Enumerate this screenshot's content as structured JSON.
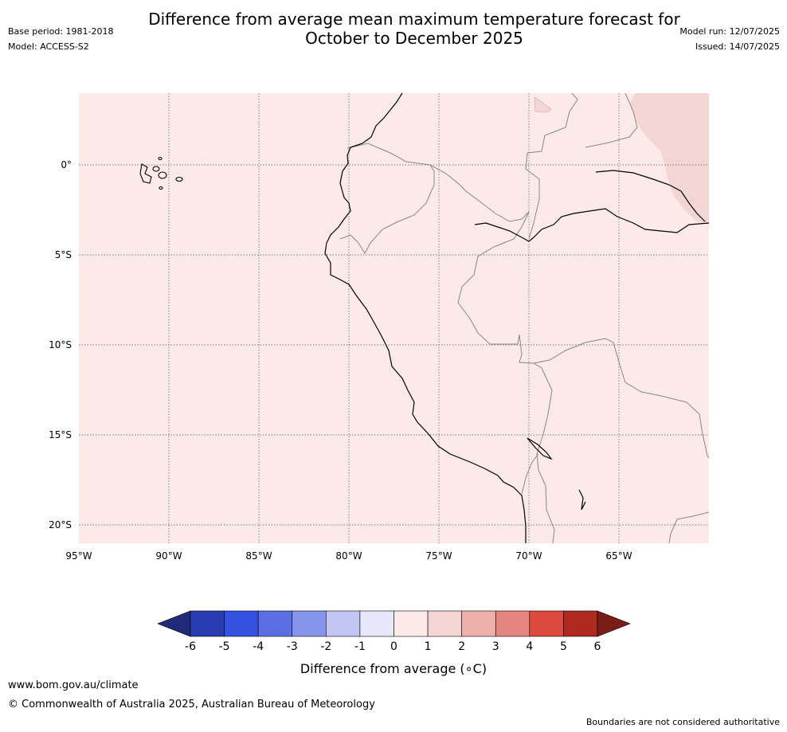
{
  "title_line1": "Difference from average mean maximum temperature forecast for",
  "title_line2": "October to December 2025",
  "base_period": "Base period: 1981-2018",
  "model": "Model: ACCESS-S2",
  "model_run": "Model run: 12/07/2025",
  "issued": "Issued: 14/07/2025",
  "map": {
    "lat_ticks": [
      "0°",
      "5°S",
      "10°S",
      "15°S",
      "20°S"
    ],
    "lon_ticks": [
      "95°W",
      "90°W",
      "85°W",
      "80°W",
      "75°W",
      "70°W",
      "65°W"
    ],
    "fill_category": "0 to 1",
    "fill_color": "#fbeae8",
    "warm_patch_category": "1 to 2",
    "warm_patch_color": "#f3d6d3"
  },
  "colorbar": {
    "labels": [
      "-6",
      "-5",
      "-4",
      "-3",
      "-2",
      "-1",
      "0",
      "1",
      "2",
      "3",
      "4",
      "5",
      "6"
    ],
    "colors": [
      "#1f2a78",
      "#2a3db0",
      "#3451e0",
      "#5a6fe3",
      "#8594e8",
      "#c1c6f2",
      "#e6e8f9",
      "#fbeae8",
      "#f3d6d3",
      "#eeb0ab",
      "#e5867e",
      "#db4a3d",
      "#ae2a20",
      "#7a1d16"
    ],
    "title": "Difference from average (∘C)"
  },
  "footer": {
    "url": "www.bom.gov.au/climate",
    "copyright": "© Commonwealth of Australia 2025, Australian Bureau of Meteorology",
    "disclaimer": "Boundaries are not considered authoritative"
  }
}
